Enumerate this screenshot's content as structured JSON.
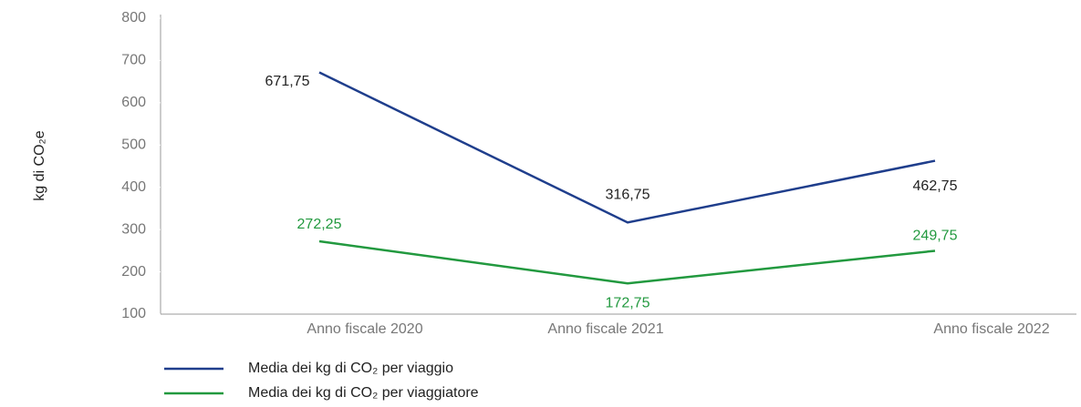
{
  "chart_data": {
    "type": "line",
    "y_label": "kg di CO₂e",
    "categories": [
      "Anno fiscale 2020",
      "Anno fiscale 2021",
      "Anno fiscale 2022"
    ],
    "series": [
      {
        "name": "Media dei kg di CO₂ per viaggio",
        "color": "#1f3e8c",
        "values": [
          671.75,
          316.75,
          462.75
        ],
        "value_labels": [
          "671,75",
          "316,75",
          "462,75"
        ]
      },
      {
        "name": "Media dei kg di CO₂ per viaggiatore",
        "color": "#22993f",
        "values": [
          272.25,
          172.75,
          249.75
        ],
        "value_labels": [
          "272,25",
          "172,75",
          "249,75"
        ]
      }
    ],
    "ylim": [
      100,
      800
    ],
    "yticks": [
      100,
      200,
      300,
      400,
      500,
      600,
      700,
      800
    ],
    "grid": false,
    "legend": "bottom-left"
  }
}
